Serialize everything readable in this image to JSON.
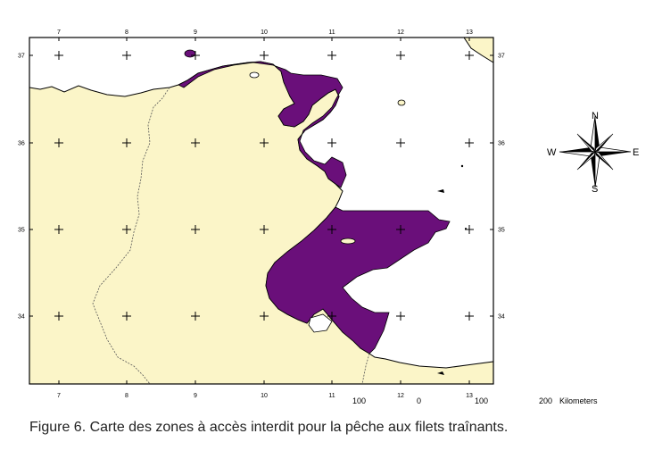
{
  "map": {
    "longitudes": [
      "7",
      "8",
      "9",
      "10",
      "11",
      "12",
      "13"
    ],
    "latitudes": [
      "37",
      "36",
      "35",
      "34"
    ],
    "colors": {
      "land": "#fbf5c8",
      "sea": "#ffffff",
      "restricted_zone": "#6a0f7a",
      "outline": "#000000"
    }
  },
  "scale_bar": {
    "left": "100",
    "middle": "0",
    "right": "100",
    "end": "200",
    "unit": "Kilometers"
  },
  "compass": {
    "north": "N",
    "south": "S",
    "east": "E",
    "west": "W"
  },
  "caption": "Figure 6. Carte des zones à accès interdit pour la pêche aux filets traînants."
}
